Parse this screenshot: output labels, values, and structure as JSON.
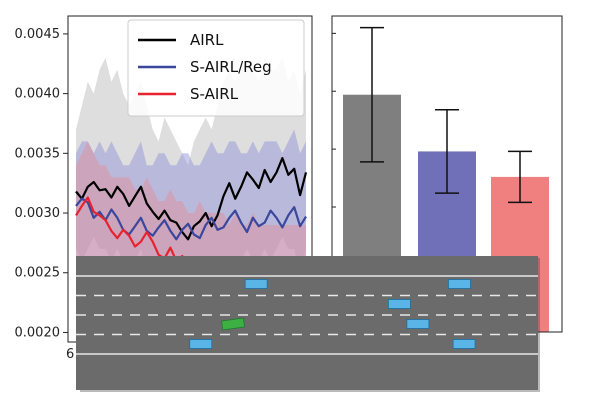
{
  "chart_data": [
    {
      "type": "line",
      "title": "",
      "xlabel": "",
      "ylabel": "",
      "ylim": [
        0.00192,
        0.00465
      ],
      "ytick_values": [
        0.002,
        0.0025,
        0.003,
        0.0035,
        0.004,
        0.0045
      ],
      "yticks": [
        "0.0020",
        "0.0025",
        "0.0030",
        "0.0035",
        "0.0040",
        "0.0045"
      ],
      "xtick_first": "6",
      "grid": false,
      "legend_placement": "top-right",
      "series": [
        {
          "name": "AIRL",
          "color": "#000000",
          "values": [
            0.00318,
            0.00312,
            0.00322,
            0.00326,
            0.00319,
            0.0032,
            0.00313,
            0.00322,
            0.00316,
            0.00306,
            0.00314,
            0.00322,
            0.00308,
            0.00301,
            0.00295,
            0.00302,
            0.00294,
            0.00292,
            0.00284,
            0.00278,
            0.00289,
            0.00293,
            0.003,
            0.00289,
            0.00298,
            0.00314,
            0.00325,
            0.00312,
            0.00322,
            0.00334,
            0.00328,
            0.00321,
            0.00336,
            0.00326,
            0.00334,
            0.00346,
            0.00332,
            0.00337,
            0.00315,
            0.00334
          ],
          "band_upper": [
            0.0037,
            0.0039,
            0.0041,
            0.004,
            0.0042,
            0.0043,
            0.0041,
            0.0042,
            0.004,
            0.0039,
            0.004,
            0.0041,
            0.0039,
            0.0037,
            0.0036,
            0.0038,
            0.0037,
            0.0036,
            0.0035,
            0.0034,
            0.0036,
            0.0037,
            0.0038,
            0.0037,
            0.0039,
            0.0041,
            0.0042,
            0.0041,
            0.0042,
            0.0043,
            0.0042,
            0.0041,
            0.0043,
            0.0042,
            0.0042,
            0.0043,
            0.0041,
            0.0042,
            0.004,
            0.0042
          ],
          "band_lower": [
            0.0027,
            0.0026,
            0.0027,
            0.0028,
            0.0027,
            0.0027,
            0.0026,
            0.0027,
            0.0026,
            0.0025,
            0.0026,
            0.0027,
            0.0025,
            0.0024,
            0.0023,
            0.0024,
            0.0023,
            0.0023,
            0.0022,
            0.0022,
            0.0023,
            0.0023,
            0.0024,
            0.0023,
            0.0024,
            0.0025,
            0.0026,
            0.0025,
            0.0026,
            0.0027,
            0.0026,
            0.0026,
            0.0027,
            0.0026,
            0.0027,
            0.0028,
            0.0027,
            0.0027,
            0.0025,
            0.0027
          ],
          "band_color": "#b5b5b5"
        },
        {
          "name": "S-AIRL/Reg",
          "color": "#3b479c",
          "values": [
            0.00306,
            0.00312,
            0.00309,
            0.00296,
            0.00301,
            0.00294,
            0.00303,
            0.00296,
            0.00286,
            0.00282,
            0.00289,
            0.00296,
            0.00285,
            0.00281,
            0.00288,
            0.00294,
            0.00285,
            0.00278,
            0.00286,
            0.00291,
            0.00282,
            0.00279,
            0.0029,
            0.00296,
            0.00286,
            0.00288,
            0.00296,
            0.00302,
            0.00292,
            0.00284,
            0.00296,
            0.00289,
            0.00292,
            0.00302,
            0.00296,
            0.00288,
            0.00298,
            0.00305,
            0.00289,
            0.00297
          ],
          "band_upper": [
            0.0035,
            0.0036,
            0.0036,
            0.0035,
            0.0036,
            0.0035,
            0.0036,
            0.0035,
            0.0034,
            0.0034,
            0.0035,
            0.0036,
            0.0034,
            0.0034,
            0.0035,
            0.0035,
            0.0034,
            0.0034,
            0.0035,
            0.0035,
            0.0034,
            0.0034,
            0.0035,
            0.0036,
            0.0035,
            0.0035,
            0.0036,
            0.0036,
            0.0035,
            0.0035,
            0.0036,
            0.0035,
            0.0036,
            0.0036,
            0.0036,
            0.0035,
            0.0036,
            0.0037,
            0.0035,
            0.0036
          ],
          "band_lower": [
            0.0026,
            0.0026,
            0.0026,
            0.0025,
            0.0025,
            0.0025,
            0.0025,
            0.0025,
            0.0024,
            0.0024,
            0.0024,
            0.0025,
            0.0024,
            0.0023,
            0.0024,
            0.0024,
            0.0023,
            0.0023,
            0.0024,
            0.0024,
            0.0023,
            0.0023,
            0.0024,
            0.0024,
            0.0023,
            0.0024,
            0.0024,
            0.0025,
            0.0024,
            0.0023,
            0.0024,
            0.0024,
            0.0024,
            0.0025,
            0.0024,
            0.0024,
            0.0024,
            0.0025,
            0.0024,
            0.0024
          ],
          "band_color": "#8c8fd8"
        },
        {
          "name": "S-AIRL",
          "color": "#e8222e",
          "values": [
            0.00298,
            0.00306,
            0.00313,
            0.00301,
            0.00298,
            0.00294,
            0.00285,
            0.00279,
            0.00286,
            0.00281,
            0.00272,
            0.00276,
            0.00284,
            0.00276,
            0.00265,
            0.00262,
            0.00271,
            0.0026,
            0.00264,
            0.00258,
            0.00254,
            0.00262,
            0.00253,
            0.00249,
            0.00258,
            0.00251,
            0.00245,
            0.00256,
            0.00249,
            0.00246,
            0.00254,
            0.00247,
            0.00243,
            0.00249,
            0.00244,
            0.00251,
            0.00246,
            0.00242,
            0.00248,
            0.00244
          ],
          "band_upper": [
            0.0034,
            0.0035,
            0.0036,
            0.0035,
            0.0034,
            0.0034,
            0.0033,
            0.0033,
            0.0033,
            0.0033,
            0.0032,
            0.0032,
            0.0033,
            0.0032,
            0.0031,
            0.0031,
            0.0032,
            0.0031,
            0.0031,
            0.003,
            0.003,
            0.0031,
            0.003,
            0.003,
            0.003,
            0.003,
            0.0029,
            0.003,
            0.0029,
            0.0029,
            0.003,
            0.0029,
            0.0029,
            0.0029,
            0.0029,
            0.0029,
            0.0029,
            0.0029,
            0.0029,
            0.0029
          ],
          "band_lower": [
            0.0025,
            0.0026,
            0.0026,
            0.0025,
            0.0025,
            0.0025,
            0.0024,
            0.0023,
            0.0024,
            0.0023,
            0.0022,
            0.0023,
            0.0024,
            0.0023,
            0.0022,
            0.0022,
            0.0023,
            0.0021,
            0.0022,
            0.0021,
            0.0021,
            0.0022,
            0.0021,
            0.002,
            0.0021,
            0.0021,
            0.002,
            0.0021,
            0.002,
            0.002,
            0.0021,
            0.002,
            0.002,
            0.002,
            0.002,
            0.0021,
            0.002,
            0.002,
            0.002,
            0.002
          ],
          "band_color": "#e58a96"
        }
      ]
    },
    {
      "type": "bar",
      "title": "",
      "xlabel": "",
      "ylabel": "",
      "categories": [
        "",
        "",
        ""
      ],
      "ylim": [
        0.00192,
        0.00465
      ],
      "series": [
        {
          "values": [
            0.00397,
            0.00348,
            0.00326
          ],
          "error": [
            0.00058,
            0.00036,
            0.00022
          ],
          "colors": [
            "#7f7f7f",
            "#7070b8",
            "#f08080"
          ]
        }
      ]
    }
  ],
  "overlay": {
    "road_color": "#6b6b6b",
    "lane_line_color": "#e8e8e8",
    "ego_car_color": "#3cb043",
    "other_car_color": "#5ab4e6",
    "lanes": 5,
    "cars": [
      {
        "lane": 0,
        "pos": 0.39
      },
      {
        "lane": 0,
        "pos": 0.83
      },
      {
        "lane": 1,
        "pos": 0.7
      },
      {
        "lane": 2,
        "pos": 0.74
      },
      {
        "lane": 3,
        "pos": 0.27
      },
      {
        "lane": 3,
        "pos": 0.84
      }
    ],
    "ego": {
      "lane": 2,
      "pos": 0.34
    }
  }
}
